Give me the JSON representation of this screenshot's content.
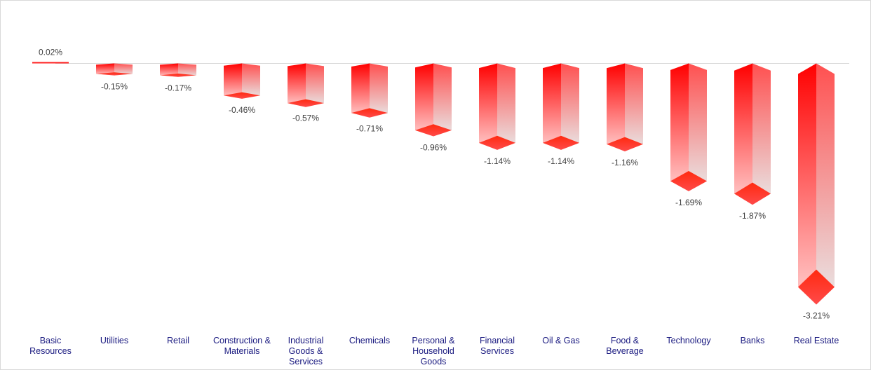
{
  "chart_data": {
    "type": "bar",
    "title": "",
    "xlabel": "",
    "ylabel": "",
    "categories": [
      "Basic Resources",
      "Utilities",
      "Retail",
      "Construction & Materials",
      "Industrial Goods & Services",
      "Chemicals",
      "Personal & Household Goods",
      "Financial Services",
      "Oil & Gas",
      "Food & Beverage",
      "Technology",
      "Banks",
      "Real Estate"
    ],
    "category_lines": [
      [
        "Basic",
        "Resources"
      ],
      [
        "Utilities"
      ],
      [
        "Retail"
      ],
      [
        "Construction &",
        "Materials"
      ],
      [
        "Industrial",
        "Goods &",
        "Services"
      ],
      [
        "Chemicals"
      ],
      [
        "Personal &",
        "Household",
        "Goods"
      ],
      [
        "Financial",
        "Services"
      ],
      [
        "Oil & Gas"
      ],
      [
        "Food &",
        "Beverage"
      ],
      [
        "Technology"
      ],
      [
        "Banks"
      ],
      [
        "Real Estate"
      ]
    ],
    "values": [
      0.02,
      -0.15,
      -0.17,
      -0.46,
      -0.57,
      -0.71,
      -0.96,
      -1.14,
      -1.14,
      -1.16,
      -1.69,
      -1.87,
      -3.21
    ],
    "labels": [
      "0.02%",
      "-0.15%",
      "-0.17%",
      "-0.46%",
      "-0.57%",
      "-0.71%",
      "-0.96%",
      "-1.14%",
      "-1.14%",
      "-1.16%",
      "-1.69%",
      "-1.87%",
      "-3.21%"
    ],
    "unit": "%",
    "ylim": [
      -3.5,
      0.5
    ],
    "grid": false,
    "legend": "none",
    "colors": {
      "bar": "#ff0000",
      "fade": "#e8e8e8",
      "category_text": "#1a1a80",
      "label_text": "#404040"
    }
  }
}
